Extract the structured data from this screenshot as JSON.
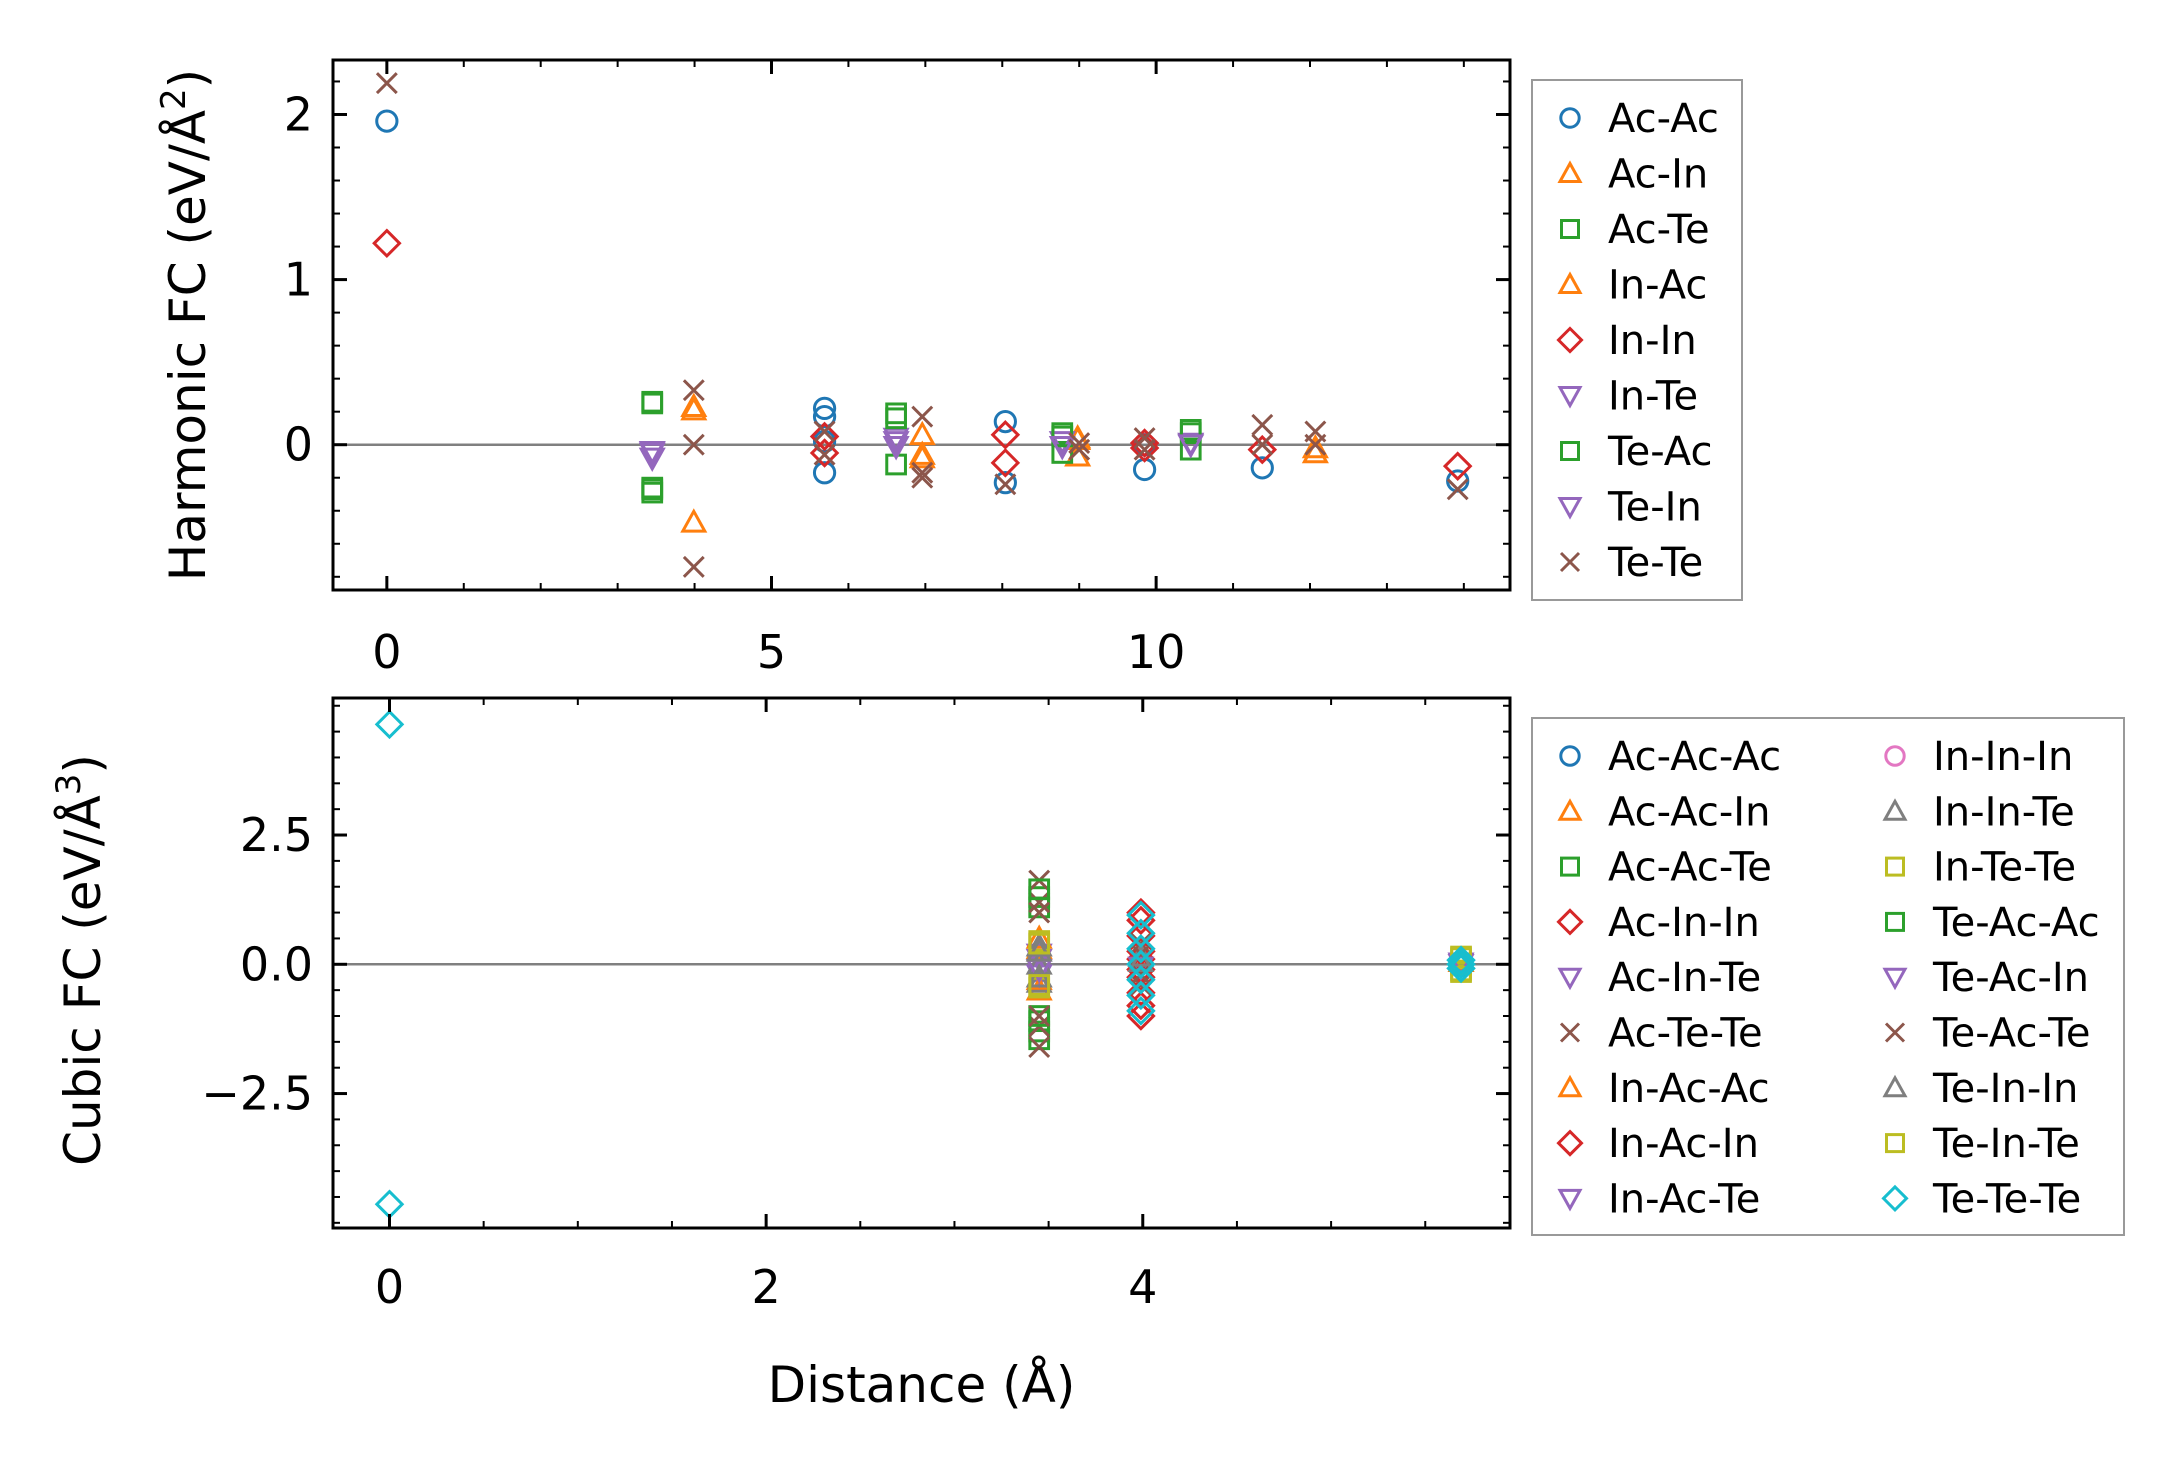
{
  "chart_data": [
    {
      "type": "scatter",
      "title": "",
      "xlabel": "",
      "ylabel": "Harmonic FC (eV/Å",
      "ylabel_sup": "2",
      "ylabel_end": ")",
      "xlim": [
        -0.7,
        14.6
      ],
      "ylim": [
        -0.88,
        2.33
      ],
      "xticks": [
        0,
        5,
        10
      ],
      "xtick_labels": [
        "0",
        "5",
        "10"
      ],
      "yticks": [
        0,
        1,
        2
      ],
      "ytick_labels": [
        "0",
        "1",
        "2"
      ],
      "legend_position": "outside-right",
      "reference_line_y": 0,
      "series": [
        {
          "name": "Ac-Ac",
          "marker": "circle",
          "color": "#1f77b4",
          "points": [
            [
              0,
              1.96
            ],
            [
              5.69,
              0.22
            ],
            [
              5.69,
              0.17
            ],
            [
              5.69,
              -0.17
            ],
            [
              5.69,
              0.02
            ],
            [
              8.04,
              0.14
            ],
            [
              8.04,
              -0.23
            ],
            [
              9.85,
              -0.15
            ],
            [
              9.85,
              0.0
            ],
            [
              11.38,
              -0.14
            ],
            [
              13.92,
              -0.22
            ]
          ]
        },
        {
          "name": "Ac-In",
          "marker": "triangle-up",
          "color": "#ff7f0e",
          "points": [
            [
              3.99,
              0.23
            ],
            [
              3.99,
              -0.47
            ],
            [
              6.96,
              0.06
            ],
            [
              6.96,
              -0.06
            ],
            [
              8.98,
              -0.07
            ],
            [
              8.98,
              0.04
            ],
            [
              12.07,
              -0.05
            ]
          ]
        },
        {
          "name": "Ac-Te",
          "marker": "square",
          "color": "#2ca02c",
          "points": [
            [
              3.45,
              0.26
            ],
            [
              3.45,
              -0.26
            ],
            [
              3.45,
              -0.29
            ],
            [
              6.62,
              0.19
            ],
            [
              6.62,
              -0.12
            ],
            [
              8.78,
              0.07
            ],
            [
              8.78,
              -0.05
            ],
            [
              10.45,
              0.09
            ],
            [
              10.45,
              -0.03
            ]
          ]
        },
        {
          "name": "In-Ac",
          "marker": "triangle-up",
          "color": "#ff7f0e",
          "points": [
            [
              3.99,
              0.21
            ],
            [
              6.96,
              -0.08
            ],
            [
              8.98,
              0.03
            ],
            [
              12.07,
              -0.02
            ]
          ]
        },
        {
          "name": "In-In",
          "marker": "diamond",
          "color": "#d62728",
          "points": [
            [
              0,
              1.22
            ],
            [
              5.69,
              0.05
            ],
            [
              5.69,
              -0.05
            ],
            [
              8.04,
              0.06
            ],
            [
              8.04,
              -0.11
            ],
            [
              9.85,
              0.01
            ],
            [
              9.85,
              -0.02
            ],
            [
              11.38,
              -0.03
            ],
            [
              13.92,
              -0.13
            ]
          ]
        },
        {
          "name": "In-Te",
          "marker": "triangle-down",
          "color": "#9467bd",
          "points": [
            [
              3.45,
              -0.05
            ],
            [
              3.45,
              -0.04
            ],
            [
              6.62,
              0.04
            ],
            [
              6.62,
              -0.01
            ],
            [
              8.78,
              0.02
            ],
            [
              10.45,
              0.01
            ]
          ]
        },
        {
          "name": "Te-Ac",
          "marker": "square",
          "color": "#2ca02c",
          "points": [
            [
              3.45,
              0.25
            ],
            [
              3.45,
              -0.27
            ],
            [
              6.62,
              0.16
            ],
            [
              8.78,
              0.05
            ],
            [
              10.45,
              0.07
            ]
          ]
        },
        {
          "name": "Te-In",
          "marker": "triangle-down",
          "color": "#9467bd",
          "points": [
            [
              3.45,
              -0.08
            ],
            [
              6.62,
              0.02
            ],
            [
              8.78,
              -0.01
            ],
            [
              10.45,
              0.0
            ]
          ]
        },
        {
          "name": "Te-Te",
          "marker": "x",
          "color": "#8c564b",
          "points": [
            [
              0,
              2.19
            ],
            [
              3.99,
              0.33
            ],
            [
              3.99,
              0.0
            ],
            [
              3.99,
              -0.74
            ],
            [
              5.69,
              0.08
            ],
            [
              5.69,
              -0.06
            ],
            [
              6.96,
              0.17
            ],
            [
              6.96,
              -0.17
            ],
            [
              6.96,
              -0.2
            ],
            [
              8.04,
              -0.24
            ],
            [
              9.0,
              0.01
            ],
            [
              9.0,
              -0.03
            ],
            [
              9.85,
              0.04
            ],
            [
              9.85,
              -0.03
            ],
            [
              11.38,
              0.12
            ],
            [
              11.38,
              0.0
            ],
            [
              12.07,
              0.08
            ],
            [
              12.07,
              0.0
            ],
            [
              13.92,
              -0.27
            ]
          ]
        }
      ]
    },
    {
      "type": "scatter",
      "title": "",
      "xlabel": "Distance (Å)",
      "ylabel": "Cubic FC (eV/Å",
      "ylabel_sup": "3",
      "ylabel_end": ")",
      "xlim": [
        -0.3,
        5.95
      ],
      "ylim": [
        -5.1,
        5.15
      ],
      "xticks": [
        0,
        2,
        4
      ],
      "xtick_labels": [
        "0",
        "2",
        "4"
      ],
      "yticks": [
        -2.5,
        0.0,
        2.5
      ],
      "ytick_labels": [
        "−2.5",
        "0.0",
        "2.5"
      ],
      "legend_position": "outside-right",
      "legend_columns": 2,
      "reference_line_y": 0,
      "series": [
        {
          "name": "Ac-Ac-Ac",
          "marker": "circle",
          "color": "#1f77b4",
          "points": [
            [
              5.69,
              0.02
            ],
            [
              5.69,
              -0.02
            ]
          ]
        },
        {
          "name": "Ac-Ac-In",
          "marker": "triangle-up",
          "color": "#ff7f0e",
          "points": [
            [
              3.45,
              0.3
            ],
            [
              3.45,
              -0.3
            ],
            [
              5.69,
              0.05
            ]
          ]
        },
        {
          "name": "Ac-Ac-Te",
          "marker": "square",
          "color": "#2ca02c",
          "points": [
            [
              3.45,
              1.3
            ],
            [
              3.45,
              1.1
            ],
            [
              3.45,
              -1.1
            ],
            [
              3.45,
              -1.3
            ],
            [
              3.45,
              -1.45
            ]
          ]
        },
        {
          "name": "Ac-In-In",
          "marker": "diamond",
          "color": "#d62728",
          "points": [
            [
              3.99,
              0.85
            ],
            [
              3.99,
              0.55
            ],
            [
              3.99,
              0.25
            ],
            [
              3.99,
              -0.25
            ],
            [
              3.99,
              -0.55
            ],
            [
              3.99,
              -0.8
            ]
          ]
        },
        {
          "name": "Ac-In-Te",
          "marker": "triangle-down",
          "color": "#9467bd",
          "points": [
            [
              3.45,
              0.2
            ],
            [
              3.45,
              -0.2
            ],
            [
              5.69,
              0.0
            ]
          ]
        },
        {
          "name": "Ac-Te-Te",
          "marker": "x",
          "color": "#8c564b",
          "points": [
            [
              3.45,
              1.62
            ],
            [
              3.45,
              1.2
            ],
            [
              3.45,
              -1.2
            ],
            [
              3.45,
              -1.6
            ],
            [
              3.99,
              0.4
            ],
            [
              3.99,
              -0.4
            ]
          ]
        },
        {
          "name": "In-Ac-Ac",
          "marker": "triangle-up",
          "color": "#ff7f0e",
          "points": [
            [
              3.45,
              0.5
            ],
            [
              3.45,
              -0.5
            ]
          ]
        },
        {
          "name": "In-Ac-In",
          "marker": "diamond",
          "color": "#d62728",
          "points": [
            [
              3.99,
              1.0
            ],
            [
              3.99,
              0.1
            ],
            [
              3.99,
              -0.1
            ],
            [
              3.99,
              -1.0
            ]
          ]
        },
        {
          "name": "In-Ac-Te",
          "marker": "triangle-down",
          "color": "#9467bd",
          "points": [
            [
              3.45,
              0.1
            ],
            [
              3.99,
              -0.05
            ]
          ]
        },
        {
          "name": "In-In-In",
          "marker": "circle",
          "color": "#e377c2",
          "points": [
            [
              5.69,
              0.01
            ]
          ]
        },
        {
          "name": "In-In-Te",
          "marker": "triangle-up",
          "color": "#7f7f7f",
          "points": [
            [
              3.45,
              0.35
            ],
            [
              3.45,
              0.0
            ],
            [
              3.45,
              -0.35
            ],
            [
              3.99,
              0.15
            ]
          ]
        },
        {
          "name": "In-Te-Te",
          "marker": "square",
          "color": "#bcbd22",
          "points": [
            [
              3.45,
              0.45
            ],
            [
              3.45,
              -0.45
            ],
            [
              5.69,
              0.15
            ],
            [
              5.69,
              -0.15
            ]
          ]
        },
        {
          "name": "Te-Ac-Ac",
          "marker": "square",
          "color": "#2ca02c",
          "points": [
            [
              3.45,
              1.45
            ],
            [
              3.45,
              -1.0
            ]
          ]
        },
        {
          "name": "Te-Ac-In",
          "marker": "triangle-down",
          "color": "#9467bd",
          "points": [
            [
              3.45,
              -0.1
            ],
            [
              5.69,
              0.03
            ]
          ]
        },
        {
          "name": "Te-Ac-Te",
          "marker": "x",
          "color": "#8c564b",
          "points": [
            [
              3.45,
              1.0
            ],
            [
              3.45,
              -1.0
            ],
            [
              3.99,
              0.2
            ],
            [
              3.99,
              -0.2
            ]
          ]
        },
        {
          "name": "Te-In-In",
          "marker": "triangle-up",
          "color": "#7f7f7f",
          "points": [
            [
              3.45,
              0.25
            ],
            [
              3.45,
              -0.25
            ],
            [
              3.99,
              0.05
            ]
          ]
        },
        {
          "name": "Te-In-Te",
          "marker": "square",
          "color": "#bcbd22",
          "points": [
            [
              3.45,
              0.4
            ],
            [
              3.45,
              -0.4
            ],
            [
              5.69,
              0.12
            ],
            [
              5.69,
              -0.12
            ],
            [
              5.69,
              0.0
            ]
          ]
        },
        {
          "name": "Te-Te-Te",
          "marker": "diamond",
          "color": "#17becf",
          "points": [
            [
              0,
              4.64
            ],
            [
              0,
              -4.64
            ],
            [
              3.99,
              0.95
            ],
            [
              3.99,
              0.6
            ],
            [
              3.99,
              0.3
            ],
            [
              3.99,
              0.0
            ],
            [
              3.99,
              -0.3
            ],
            [
              3.99,
              -0.6
            ],
            [
              3.99,
              -0.9
            ],
            [
              5.69,
              0.08
            ],
            [
              5.69,
              0.0
            ],
            [
              5.69,
              -0.08
            ]
          ]
        }
      ]
    }
  ]
}
